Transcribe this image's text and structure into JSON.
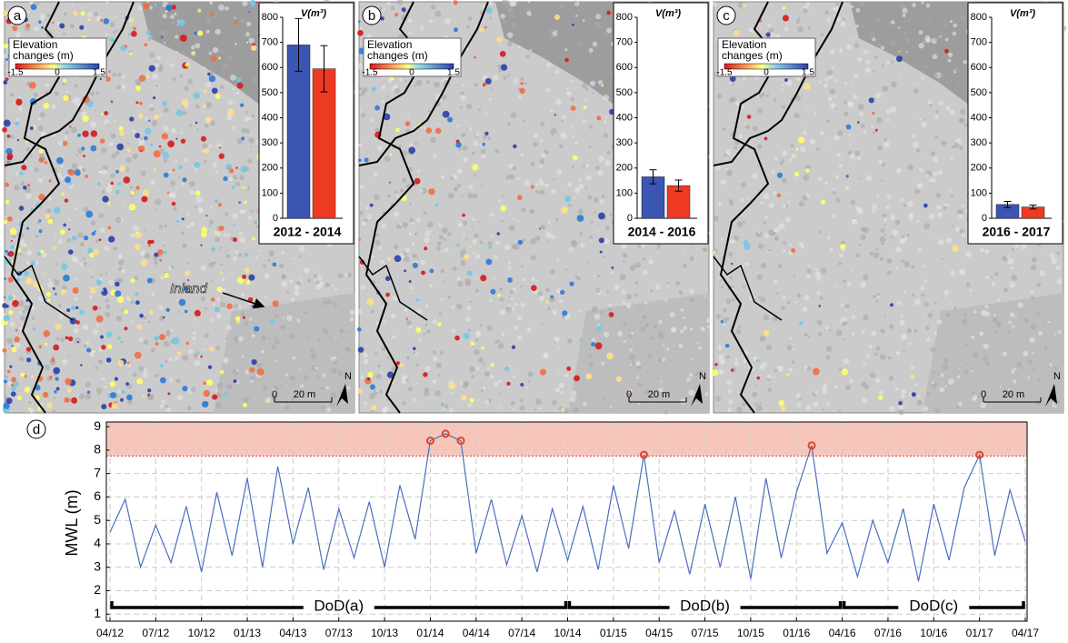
{
  "maps": {
    "legend_title": "Elevation changes (m)",
    "legend_ticks": [
      -1.5,
      0,
      1.5
    ],
    "axis_label": "V(m³)",
    "ylim": [
      0,
      800
    ],
    "yticks": [
      0,
      100,
      200,
      300,
      400,
      500,
      600,
      700,
      800
    ],
    "series_colors": [
      "#3b55b3",
      "#ee3a23"
    ],
    "scale_labels": [
      "0",
      "20 m"
    ],
    "north": "N",
    "annotation": "Inland",
    "panels": [
      {
        "letter": "a",
        "period": "2012 - 2014",
        "values": [
          690,
          595
        ],
        "errors": [
          105,
          92
        ]
      },
      {
        "letter": "b",
        "period": "2014 - 2016",
        "values": [
          165,
          130
        ],
        "errors": [
          28,
          22
        ]
      },
      {
        "letter": "c",
        "period": "2016 - 2017",
        "values": [
          55,
          45
        ],
        "errors": [
          12,
          8
        ]
      }
    ]
  },
  "chart_data": {
    "type": "line",
    "letter": "d",
    "y_label": "MWL (m)",
    "categories": [
      "04/12",
      null,
      null,
      "07/12",
      null,
      null,
      "10/12",
      null,
      null,
      "01/13",
      null,
      null,
      "04/13",
      null,
      null,
      "07/13",
      null,
      null,
      "10/13",
      null,
      null,
      "01/14",
      null,
      null,
      "04/14",
      null,
      null,
      "07/14",
      null,
      null,
      "10/14",
      null,
      null,
      "01/15",
      null,
      null,
      "04/15",
      null,
      null,
      "07/15",
      null,
      null,
      "10/15",
      null,
      null,
      "01/16",
      null,
      null,
      "04/16",
      null,
      null,
      "07/16",
      null,
      null,
      "10/16",
      null,
      null,
      "01/17",
      null,
      null,
      "04/17"
    ],
    "series": [
      {
        "color": "#4a6fbe",
        "style": "line",
        "values": [
          4.5,
          5.9,
          3.0,
          4.8,
          3.2,
          5.6,
          2.8,
          6.2,
          3.5,
          6.8,
          3.0,
          7.3,
          4.0,
          6.4,
          2.9,
          5.5,
          3.4,
          5.8,
          3.0,
          6.5,
          4.2,
          8.4,
          8.7,
          8.4,
          3.6,
          5.9,
          3.1,
          5.2,
          2.8,
          5.5,
          3.3,
          5.6,
          2.9,
          6.5,
          3.8,
          7.8,
          3.2,
          5.4,
          2.7,
          5.7,
          3.0,
          6.0,
          2.5,
          6.8,
          3.4,
          6.2,
          8.2,
          3.6,
          4.9,
          2.6,
          5.0,
          3.2,
          5.5,
          2.4,
          5.7,
          3.3,
          6.4,
          7.8,
          3.5,
          6.3,
          4.1
        ]
      },
      {
        "color": "#e8432b",
        "style": "markers",
        "values": [
          null,
          null,
          null,
          null,
          null,
          null,
          null,
          null,
          null,
          null,
          null,
          null,
          null,
          null,
          null,
          null,
          null,
          null,
          null,
          null,
          null,
          8.4,
          8.7,
          8.4,
          null,
          null,
          null,
          null,
          null,
          null,
          null,
          null,
          null,
          null,
          null,
          7.8,
          null,
          null,
          null,
          null,
          null,
          null,
          null,
          null,
          null,
          null,
          8.2,
          null,
          null,
          null,
          null,
          null,
          null,
          null,
          null,
          null,
          null,
          7.8,
          null,
          null,
          null
        ]
      }
    ],
    "threshold": 7.75,
    "threshold_color": "#f7c6bb",
    "ylim": [
      0.7,
      9.2
    ],
    "yticks": [
      1,
      2,
      3,
      4,
      5,
      6,
      7,
      8,
      9
    ],
    "grid": true,
    "periods": [
      {
        "label": "DoD(a)",
        "start": "04/12",
        "end": "10/14"
      },
      {
        "label": "DoD(b)",
        "start": "10/14",
        "end": "04/16"
      },
      {
        "label": "DoD(c)",
        "start": "04/16",
        "end": "04/17"
      }
    ]
  }
}
